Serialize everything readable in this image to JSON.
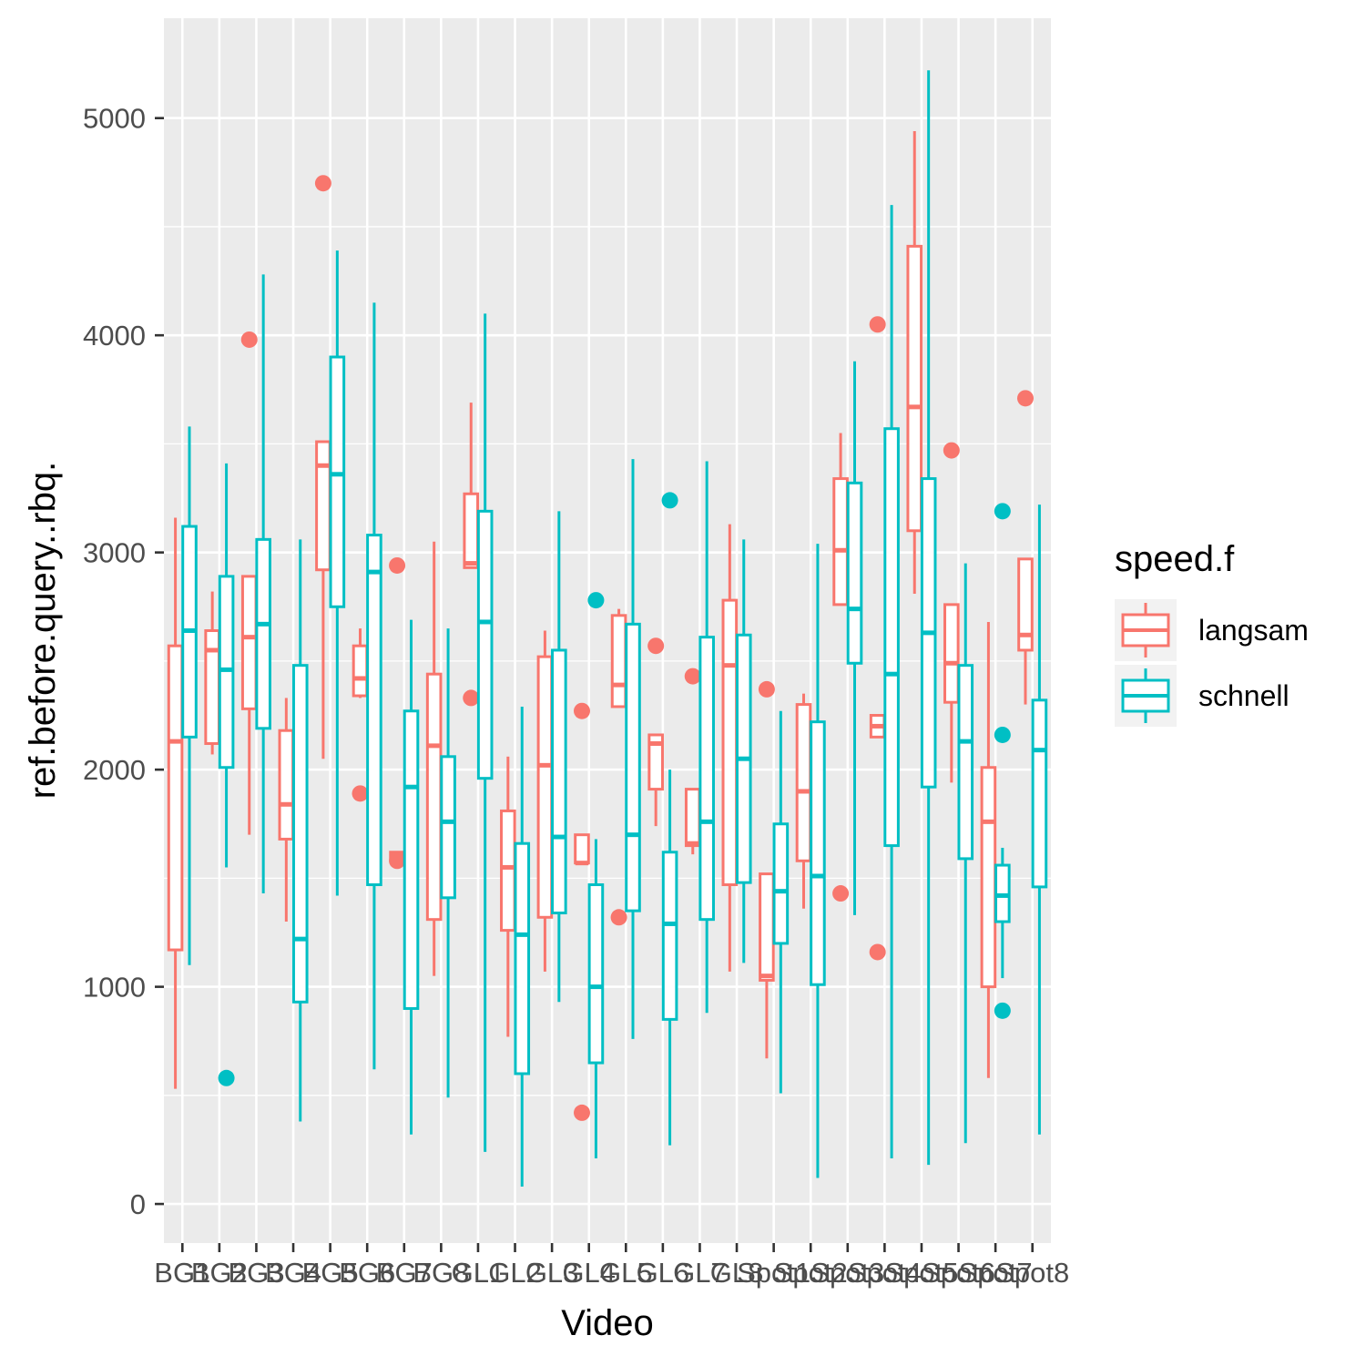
{
  "chart_data": {
    "type": "boxplot",
    "xlabel": "Video",
    "ylabel": "ref.before.query..rbq.",
    "ylim": [
      -180,
      5460
    ],
    "yticks": [
      0,
      1000,
      2000,
      3000,
      4000,
      5000
    ],
    "categories": [
      "BG1",
      "BG2",
      "BG3",
      "BG4",
      "BG5",
      "BG6",
      "BG7",
      "BG8",
      "GL1",
      "GL2",
      "GL3",
      "GL4",
      "GL5",
      "GL6",
      "GL7",
      "GL8",
      "Spot1",
      "Spot2",
      "Spot3",
      "Spot4",
      "Spot5",
      "Spot6",
      "Spot7",
      "Spot8"
    ],
    "category_labels_as_printed": [
      "BG1",
      "BG2",
      "BG3",
      "BG4",
      "BG5",
      "BG6",
      "BG7",
      "BG8",
      "GL1",
      "GL2",
      "GL3",
      "GL4",
      "GL5",
      "GL6",
      "GL7",
      "GL8",
      "Spot1",
      "Spot2",
      "Spot3",
      "Spot4",
      "Spot5",
      "Spot6",
      "Spot7",
      "Spot8"
    ],
    "legend": {
      "title": "speed.f",
      "position": "right"
    },
    "grid": true,
    "series": [
      {
        "name": "langsam",
        "color": "#F8766D",
        "boxes": [
          {
            "cat": 0,
            "pos": 0,
            "low": 530,
            "q1": 1170,
            "med": 2130,
            "q3": 2570,
            "high": 3160,
            "outliers": []
          },
          {
            "cat": 1,
            "pos": 0,
            "low": 2070,
            "q1": 2120,
            "med": 2550,
            "q3": 2640,
            "high": 2820,
            "outliers": []
          },
          {
            "cat": 2,
            "pos": 0,
            "low": 1700,
            "q1": 2280,
            "med": 2610,
            "q3": 2890,
            "high": 2890,
            "outliers": [
              3980
            ]
          },
          {
            "cat": 3,
            "pos": 0,
            "low": 1300,
            "q1": 1680,
            "med": 1840,
            "q3": 2180,
            "high": 2330,
            "outliers": []
          },
          {
            "cat": 4,
            "pos": 0,
            "low": 2050,
            "q1": 2920,
            "med": 3400,
            "q3": 3510,
            "high": 3510,
            "outliers": [
              4700
            ]
          },
          {
            "cat": 5,
            "pos": 0,
            "low": 2330,
            "q1": 2340,
            "med": 2420,
            "q3": 2570,
            "high": 2650,
            "outliers": [
              1890
            ]
          },
          {
            "cat": 6,
            "pos": 0,
            "low": 1580,
            "q1": 1590,
            "med": 1610,
            "q3": 1620,
            "high": 1620,
            "outliers": [
              2940,
              1580
            ]
          },
          {
            "cat": 7,
            "pos": 0,
            "low": 1050,
            "q1": 1310,
            "med": 2110,
            "q3": 2440,
            "high": 3050,
            "outliers": []
          },
          {
            "cat": 8,
            "pos": 0,
            "low": 2930,
            "q1": 2930,
            "med": 2950,
            "q3": 3270,
            "high": 3690,
            "outliers": [
              2330
            ]
          },
          {
            "cat": 9,
            "pos": 0,
            "low": 770,
            "q1": 1260,
            "med": 1550,
            "q3": 1810,
            "high": 2060,
            "outliers": []
          },
          {
            "cat": 10,
            "pos": 0,
            "low": 1070,
            "q1": 1320,
            "med": 2020,
            "q3": 2520,
            "high": 2640,
            "outliers": []
          },
          {
            "cat": 11,
            "pos": 0,
            "low": 1570,
            "q1": 1570,
            "med": 1570,
            "q3": 1700,
            "high": 1700,
            "outliers": [
              2270,
              420
            ]
          },
          {
            "cat": 12,
            "pos": 0,
            "low": 2290,
            "q1": 2290,
            "med": 2390,
            "q3": 2710,
            "high": 2740,
            "outliers": [
              1320
            ]
          },
          {
            "cat": 13,
            "pos": 0,
            "low": 1740,
            "q1": 1910,
            "med": 2120,
            "q3": 2160,
            "high": 2160,
            "outliers": [
              2570
            ]
          },
          {
            "cat": 14,
            "pos": 0,
            "low": 1610,
            "q1": 1650,
            "med": 1660,
            "q3": 1910,
            "high": 1910,
            "outliers": [
              2430
            ]
          },
          {
            "cat": 15,
            "pos": 0,
            "low": 1070,
            "q1": 1470,
            "med": 2480,
            "q3": 2780,
            "high": 3130,
            "outliers": []
          },
          {
            "cat": 16,
            "pos": 0,
            "low": 670,
            "q1": 1030,
            "med": 1050,
            "q3": 1520,
            "high": 1520,
            "outliers": [
              2370
            ]
          },
          {
            "cat": 17,
            "pos": 0,
            "low": 1360,
            "q1": 1580,
            "med": 1900,
            "q3": 2300,
            "high": 2350,
            "outliers": []
          },
          {
            "cat": 18,
            "pos": 0,
            "low": 2760,
            "q1": 2760,
            "med": 3010,
            "q3": 3340,
            "high": 3550,
            "outliers": [
              1430
            ]
          },
          {
            "cat": 19,
            "pos": 0,
            "low": 2150,
            "q1": 2150,
            "med": 2200,
            "q3": 2250,
            "high": 2250,
            "outliers": [
              4050,
              1160
            ]
          },
          {
            "cat": 20,
            "pos": 0,
            "low": 2810,
            "q1": 3100,
            "med": 3670,
            "q3": 4410,
            "high": 4940,
            "outliers": []
          },
          {
            "cat": 21,
            "pos": 0,
            "low": 1940,
            "q1": 2310,
            "med": 2490,
            "q3": 2760,
            "high": 2760,
            "outliers": [
              3470
            ]
          },
          {
            "cat": 22,
            "pos": 0,
            "low": 580,
            "q1": 1000,
            "med": 1760,
            "q3": 2010,
            "high": 2680,
            "outliers": []
          },
          {
            "cat": 23,
            "pos": 0,
            "low": 2300,
            "q1": 2550,
            "med": 2620,
            "q3": 2970,
            "high": 2970,
            "outliers": [
              3710
            ]
          }
        ]
      },
      {
        "name": "schnell",
        "color": "#00BFC4",
        "boxes": [
          {
            "cat": 0,
            "pos": 1,
            "low": 1100,
            "q1": 2150,
            "med": 2640,
            "q3": 3120,
            "high": 3580,
            "outliers": []
          },
          {
            "cat": 1,
            "pos": 1,
            "low": 1550,
            "q1": 2010,
            "med": 2460,
            "q3": 2890,
            "high": 3410,
            "outliers": [
              580
            ]
          },
          {
            "cat": 2,
            "pos": 1,
            "low": 1430,
            "q1": 2190,
            "med": 2670,
            "q3": 3060,
            "high": 4280,
            "outliers": []
          },
          {
            "cat": 3,
            "pos": 1,
            "low": 380,
            "q1": 930,
            "med": 1220,
            "q3": 2480,
            "high": 3060,
            "outliers": []
          },
          {
            "cat": 4,
            "pos": 1,
            "low": 1420,
            "q1": 2750,
            "med": 3360,
            "q3": 3900,
            "high": 4390,
            "outliers": []
          },
          {
            "cat": 5,
            "pos": 1,
            "low": 620,
            "q1": 1470,
            "med": 2910,
            "q3": 3080,
            "high": 4150,
            "outliers": []
          },
          {
            "cat": 6,
            "pos": 1,
            "low": 320,
            "q1": 900,
            "med": 1920,
            "q3": 2270,
            "high": 2690,
            "outliers": []
          },
          {
            "cat": 7,
            "pos": 1,
            "low": 490,
            "q1": 1410,
            "med": 1760,
            "q3": 2060,
            "high": 2650,
            "outliers": []
          },
          {
            "cat": 8,
            "pos": 1,
            "low": 240,
            "q1": 1960,
            "med": 2680,
            "q3": 3190,
            "high": 4100,
            "outliers": []
          },
          {
            "cat": 9,
            "pos": 1,
            "low": 80,
            "q1": 600,
            "med": 1240,
            "q3": 1660,
            "high": 2290,
            "outliers": []
          },
          {
            "cat": 10,
            "pos": 1,
            "low": 930,
            "q1": 1340,
            "med": 1690,
            "q3": 2550,
            "high": 3190,
            "outliers": []
          },
          {
            "cat": 11,
            "pos": 1,
            "low": 210,
            "q1": 650,
            "med": 1000,
            "q3": 1470,
            "high": 1680,
            "outliers": [
              2780
            ]
          },
          {
            "cat": 12,
            "pos": 1,
            "low": 760,
            "q1": 1350,
            "med": 1700,
            "q3": 2670,
            "high": 3430,
            "outliers": []
          },
          {
            "cat": 13,
            "pos": 1,
            "low": 270,
            "q1": 850,
            "med": 1290,
            "q3": 1620,
            "high": 2000,
            "outliers": [
              3240
            ]
          },
          {
            "cat": 14,
            "pos": 1,
            "low": 880,
            "q1": 1310,
            "med": 1760,
            "q3": 2610,
            "high": 3420,
            "outliers": []
          },
          {
            "cat": 15,
            "pos": 1,
            "low": 1110,
            "q1": 1480,
            "med": 2050,
            "q3": 2620,
            "high": 3060,
            "outliers": []
          },
          {
            "cat": 16,
            "pos": 1,
            "low": 510,
            "q1": 1200,
            "med": 1440,
            "q3": 1750,
            "high": 2270,
            "outliers": []
          },
          {
            "cat": 17,
            "pos": 1,
            "low": 120,
            "q1": 1010,
            "med": 1510,
            "q3": 2220,
            "high": 3040,
            "outliers": []
          },
          {
            "cat": 18,
            "pos": 1,
            "low": 1330,
            "q1": 2490,
            "med": 2740,
            "q3": 3320,
            "high": 3880,
            "outliers": []
          },
          {
            "cat": 19,
            "pos": 1,
            "low": 210,
            "q1": 1650,
            "med": 2440,
            "q3": 3570,
            "high": 4600,
            "outliers": []
          },
          {
            "cat": 20,
            "pos": 1,
            "low": 180,
            "q1": 1920,
            "med": 2630,
            "q3": 3340,
            "high": 5220,
            "outliers": []
          },
          {
            "cat": 21,
            "pos": 1,
            "low": 280,
            "q1": 1590,
            "med": 2130,
            "q3": 2480,
            "high": 2950,
            "outliers": []
          },
          {
            "cat": 22,
            "pos": 1,
            "low": 1040,
            "q1": 1300,
            "med": 1420,
            "q3": 1560,
            "high": 1640,
            "outliers": [
              3190,
              2160,
              890
            ]
          },
          {
            "cat": 23,
            "pos": 1,
            "low": 320,
            "q1": 1460,
            "med": 2090,
            "q3": 2320,
            "high": 3220,
            "outliers": []
          }
        ]
      }
    ]
  },
  "legend_keys": [
    {
      "label": "langsam",
      "color": "#F8766D"
    },
    {
      "label": "schnell",
      "color": "#00BFC4"
    }
  ],
  "colors": {
    "panel_bg": "#EBEBEB",
    "grid": "#FFFFFF",
    "tick_text": "#4D4D4D"
  }
}
